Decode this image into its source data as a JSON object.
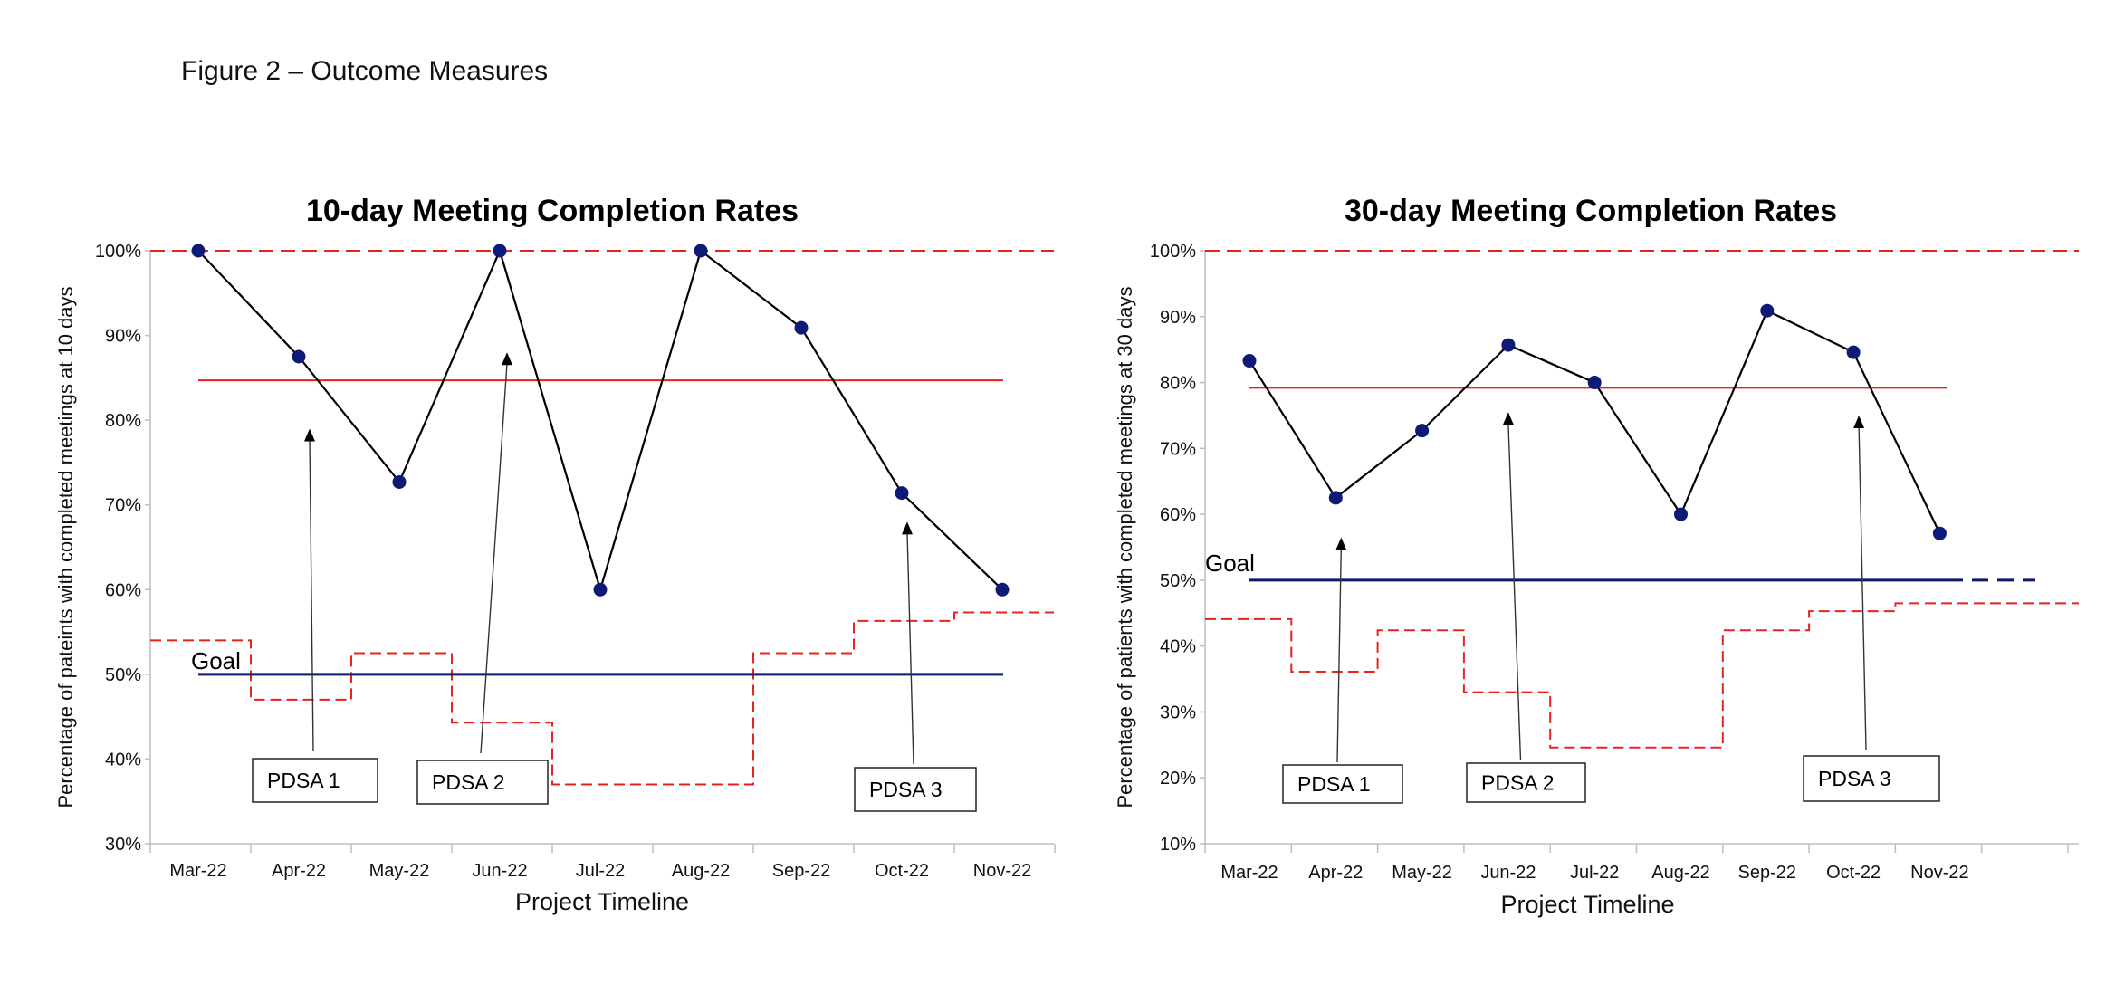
{
  "caption": "Figure 2 – Outcome Measures",
  "colors": {
    "data_line": "#000000",
    "point": "#0d1a78",
    "center": "#e8231b",
    "limit": "#e8231b",
    "goal": "#0d1a6b"
  },
  "chart_data": [
    {
      "type": "line",
      "title": "10-day Meeting Completion Rates",
      "xlabel": "Project Timeline",
      "ylabel": "Percentage of pateints with completed meetings at 10 days",
      "categories": [
        "Mar-22",
        "Apr-22",
        "May-22",
        "Jun-22",
        "Jul-22",
        "Aug-22",
        "Sep-22",
        "Oct-22",
        "Nov-22"
      ],
      "y_ticks": [
        "30%",
        "40%",
        "50%",
        "60%",
        "70%",
        "80%",
        "90%",
        "100%"
      ],
      "ylim": [
        30,
        100
      ],
      "grid": false,
      "series": [
        {
          "role": "data",
          "values": [
            100,
            87.5,
            72.7,
            100,
            60,
            100,
            90.9,
            71.4,
            60
          ]
        },
        {
          "role": "center",
          "value": 84.7
        },
        {
          "role": "upper_limit",
          "value": 100
        },
        {
          "role": "lower_limit",
          "values": [
            54,
            47,
            52.5,
            44.3,
            37,
            37,
            52.5,
            56.3,
            57.3
          ]
        },
        {
          "role": "goal",
          "value": 50
        }
      ],
      "goal_label": "Goal",
      "annotations": [
        {
          "label": "PDSA 1",
          "arrow_x": "Apr-22",
          "arrow_y": 79
        },
        {
          "label": "PDSA 2",
          "arrow_x": "Jun-22",
          "arrow_y": 88
        },
        {
          "label": "PDSA 3",
          "arrow_x": "Oct-22",
          "arrow_y": 68
        }
      ]
    },
    {
      "type": "line",
      "title": "30-day Meeting Completion Rates",
      "xlabel": "Project Timeline",
      "ylabel": "Percentage of patients with completed meetings at 30 days",
      "categories": [
        "Mar-22",
        "Apr-22",
        "May-22",
        "Jun-22",
        "Jul-22",
        "Aug-22",
        "Sep-22",
        "Oct-22",
        "Nov-22"
      ],
      "y_ticks": [
        "10%",
        "20%",
        "30%",
        "40%",
        "50%",
        "60%",
        "70%",
        "80%",
        "90%",
        "100%"
      ],
      "ylim": [
        10,
        100
      ],
      "grid": false,
      "series": [
        {
          "role": "data",
          "values": [
            83.3,
            62.5,
            72.7,
            85.7,
            80,
            60,
            90.9,
            84.6,
            57.1
          ]
        },
        {
          "role": "center",
          "value": 79.2
        },
        {
          "role": "upper_limit",
          "value": 100
        },
        {
          "role": "lower_limit",
          "values": [
            44.1,
            36.1,
            42.4,
            33,
            24.6,
            24.6,
            42.4,
            45.3,
            46.5
          ]
        },
        {
          "role": "goal",
          "value": 50
        }
      ],
      "goal_label": "Goal",
      "annotations": [
        {
          "label": "PDSA 1",
          "arrow_x": "Apr-22",
          "arrow_y": 56.5
        },
        {
          "label": "PDSA 2",
          "arrow_x": "Jun-22",
          "arrow_y": 75.5
        },
        {
          "label": "PDSA 3",
          "arrow_x": "Oct-22",
          "arrow_y": 75
        }
      ]
    }
  ]
}
